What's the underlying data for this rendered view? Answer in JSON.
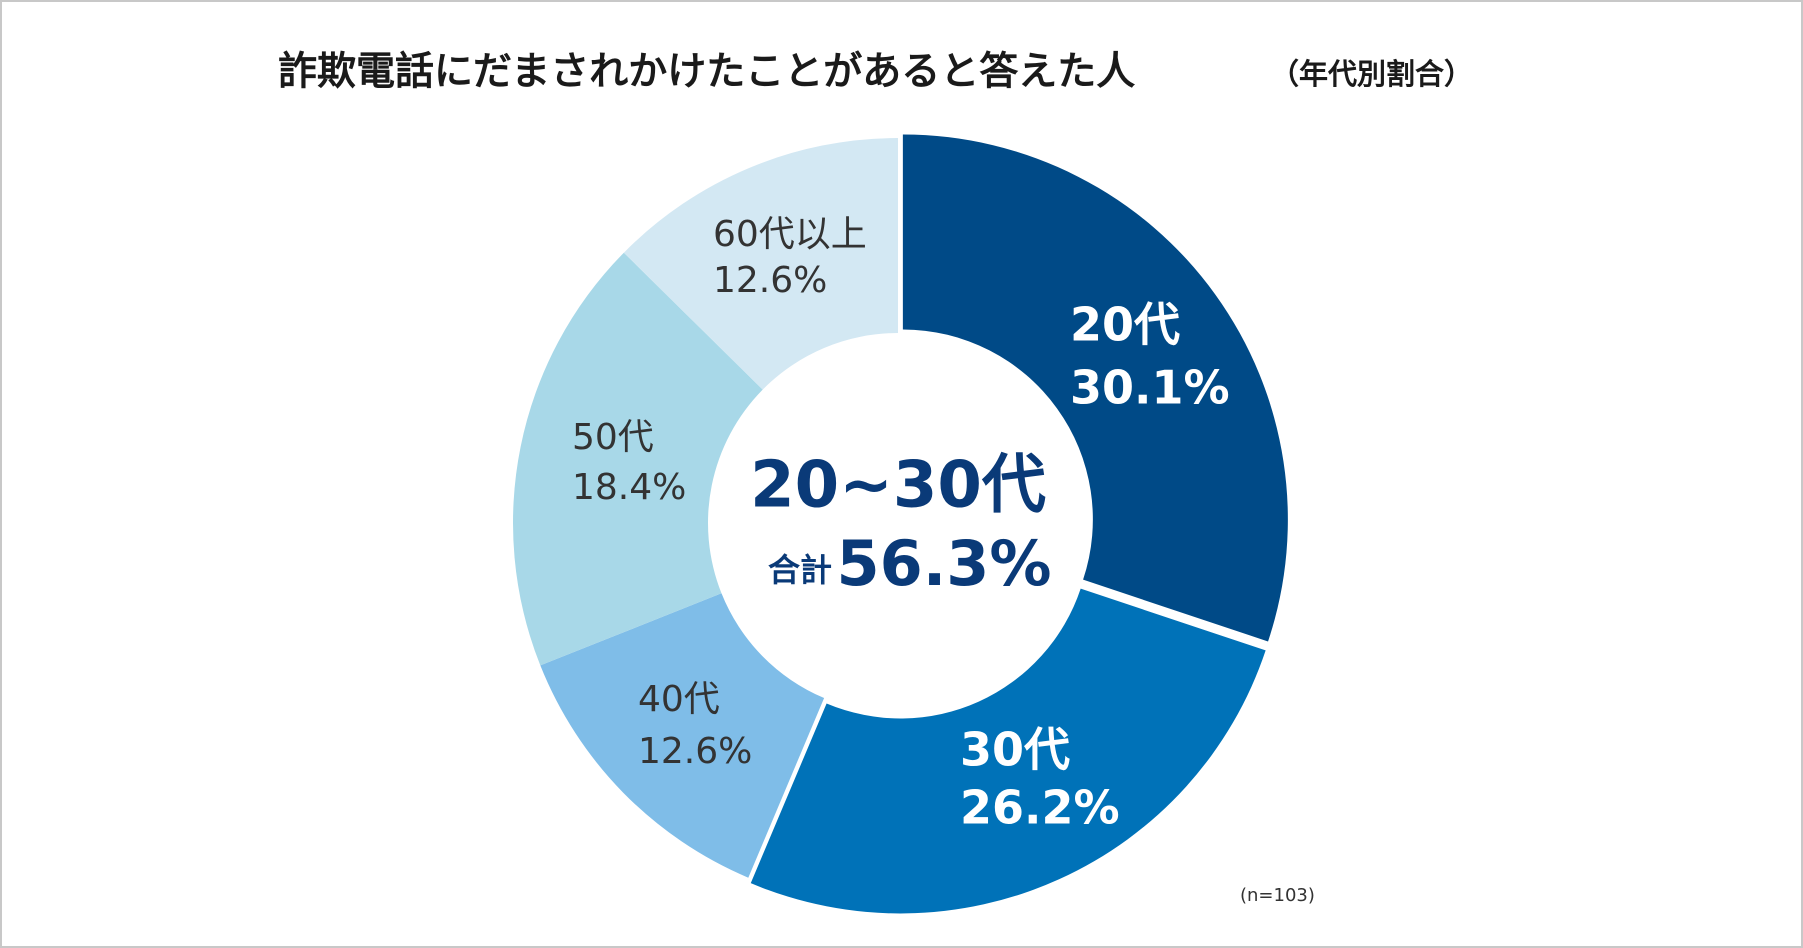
{
  "chart_data": {
    "type": "donut",
    "title": "詐欺電話にだまされかけたことがあると答えた人",
    "subtitle": "（年代別割合）",
    "categories": [
      "20代",
      "30代",
      "40代",
      "50代",
      "60代以上"
    ],
    "values": [
      30.1,
      26.2,
      12.6,
      18.4,
      12.6
    ],
    "value_labels": [
      "30.1%",
      "26.2%",
      "12.6%",
      "18.4%",
      "12.6%"
    ],
    "colors": [
      "#004a87",
      "#0072b8",
      "#7fbde8",
      "#a8d8e8",
      "#d3e8f3"
    ],
    "center_label": "20~30代",
    "center_sub_label": "合計",
    "center_value": 56.3,
    "center_value_label": "56.3%",
    "note": "(n=103)"
  }
}
